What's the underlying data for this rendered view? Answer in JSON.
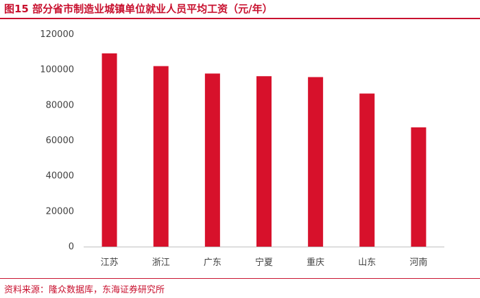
{
  "header": {
    "title": "图15  部分省市制造业城镇单位就业人员平均工资（元/年）"
  },
  "footer": {
    "source": "资料来源：隆众数据库，东海证券研究所"
  },
  "chart_data": {
    "type": "bar",
    "title": "部分省市制造业城镇单位就业人员平均工资（元/年）",
    "xlabel": "",
    "ylabel": "",
    "categories": [
      "江苏",
      "浙江",
      "广东",
      "宁夏",
      "重庆",
      "山东",
      "河南"
    ],
    "values": [
      109200,
      102000,
      97800,
      96300,
      95800,
      86500,
      67400
    ],
    "ylim": [
      0,
      120000
    ],
    "yticks": [
      0,
      20000,
      40000,
      60000,
      80000,
      100000,
      120000
    ],
    "grid": false,
    "bar_color": "#d7112b",
    "accent_color": "#c8102e"
  }
}
